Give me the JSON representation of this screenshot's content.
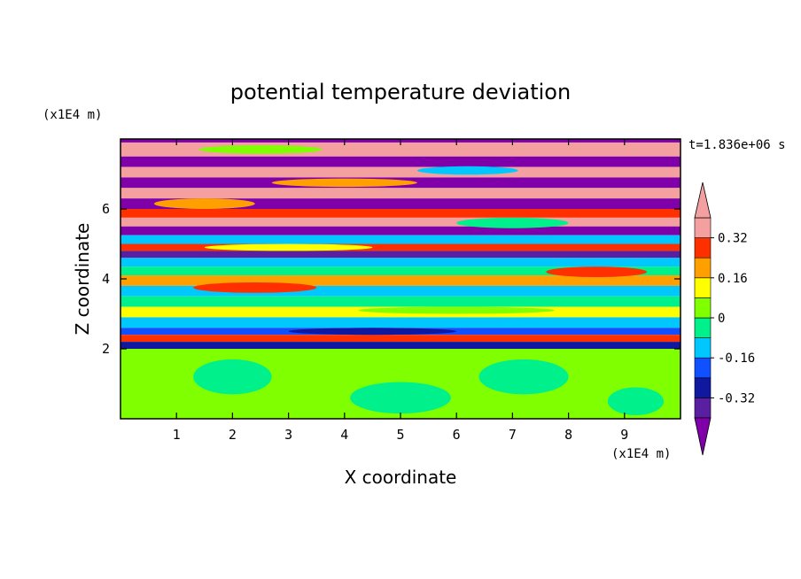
{
  "chart_data": {
    "type": "heatmap",
    "title": "potential temperature deviation",
    "xlabel": "X coordinate",
    "ylabel": "Z coordinate",
    "x_unit": "(x1E4 m)",
    "y_unit": "(x1E4 m)",
    "time_label": "t=1.836e+06 s",
    "xlim": [
      0,
      10
    ],
    "ylim": [
      0,
      8
    ],
    "x_ticks": [
      "1",
      "2",
      "3",
      "4",
      "5",
      "6",
      "7",
      "8",
      "9"
    ],
    "x_tick_values": [
      1,
      2,
      3,
      4,
      5,
      6,
      7,
      8,
      9
    ],
    "y_ticks": [
      "2",
      "4",
      "6"
    ],
    "y_tick_values": [
      2,
      4,
      6
    ],
    "colorbar": {
      "levels": [
        -0.4,
        -0.32,
        -0.24,
        -0.16,
        -0.08,
        0,
        0.08,
        0.16,
        0.24,
        0.32,
        0.4
      ],
      "tick_labels": [
        "0.32",
        "0.16",
        "0",
        "-0.16",
        "-0.32"
      ],
      "tick_values": [
        0.32,
        0.16,
        0,
        -0.16,
        -0.32
      ],
      "colors": [
        "#7f00a8",
        "#5a1ea0",
        "#1018a0",
        "#1050ff",
        "#00c8ff",
        "#00f08c",
        "#7fff00",
        "#ffff00",
        "#ffa000",
        "#ff3000",
        "#f5a0a0"
      ],
      "extend": "both"
    },
    "bands": [
      {
        "z0": 7.9,
        "z1": 8.0,
        "color": "#7f00a8"
      },
      {
        "z0": 7.5,
        "z1": 7.9,
        "color": "#f5a0a0"
      },
      {
        "z0": 7.2,
        "z1": 7.5,
        "color": "#7f00a8"
      },
      {
        "z0": 6.9,
        "z1": 7.2,
        "color": "#f5a0a0"
      },
      {
        "z0": 6.6,
        "z1": 6.9,
        "color": "#7f00a8"
      },
      {
        "z0": 6.3,
        "z1": 6.6,
        "color": "#f5a0a0"
      },
      {
        "z0": 6.0,
        "z1": 6.3,
        "color": "#7f00a8"
      },
      {
        "z0": 5.75,
        "z1": 6.0,
        "color": "#ff3000"
      },
      {
        "z0": 5.5,
        "z1": 5.75,
        "color": "#f5a0a0"
      },
      {
        "z0": 5.25,
        "z1": 5.5,
        "color": "#7f00a8"
      },
      {
        "z0": 5.0,
        "z1": 5.25,
        "color": "#00c8ff"
      },
      {
        "z0": 4.8,
        "z1": 5.0,
        "color": "#ff3000"
      },
      {
        "z0": 4.6,
        "z1": 4.8,
        "color": "#5a1ea0"
      },
      {
        "z0": 4.35,
        "z1": 4.6,
        "color": "#00c8ff"
      },
      {
        "z0": 4.1,
        "z1": 4.35,
        "color": "#00f08c"
      },
      {
        "z0": 3.8,
        "z1": 4.1,
        "color": "#ffa000"
      },
      {
        "z0": 3.5,
        "z1": 3.8,
        "color": "#00c8ff"
      },
      {
        "z0": 3.2,
        "z1": 3.5,
        "color": "#00f08c"
      },
      {
        "z0": 2.9,
        "z1": 3.2,
        "color": "#ffff00"
      },
      {
        "z0": 2.6,
        "z1": 2.9,
        "color": "#00c8ff"
      },
      {
        "z0": 2.4,
        "z1": 2.6,
        "color": "#1050ff"
      },
      {
        "z0": 2.2,
        "z1": 2.4,
        "color": "#ff3000"
      },
      {
        "z0": 2.0,
        "z1": 2.2,
        "color": "#1018a0"
      },
      {
        "z0": 0.0,
        "z1": 2.0,
        "color": "#7fff00"
      }
    ],
    "blobs": [
      {
        "x": 2.5,
        "z": 7.7,
        "w": 2.2,
        "h": 0.12,
        "color": "#7fff00"
      },
      {
        "x": 6.2,
        "z": 7.1,
        "w": 1.8,
        "h": 0.12,
        "color": "#00c8ff"
      },
      {
        "x": 4.0,
        "z": 6.75,
        "w": 2.6,
        "h": 0.12,
        "color": "#ffa000"
      },
      {
        "x": 1.5,
        "z": 6.15,
        "w": 1.8,
        "h": 0.15,
        "color": "#ffa000"
      },
      {
        "x": 7.0,
        "z": 5.6,
        "w": 2.0,
        "h": 0.15,
        "color": "#00f08c"
      },
      {
        "x": 3.0,
        "z": 4.9,
        "w": 3.0,
        "h": 0.1,
        "color": "#ffff00"
      },
      {
        "x": 8.5,
        "z": 4.2,
        "w": 1.8,
        "h": 0.15,
        "color": "#ff3000"
      },
      {
        "x": 2.4,
        "z": 3.75,
        "w": 2.2,
        "h": 0.15,
        "color": "#ff3000"
      },
      {
        "x": 6.0,
        "z": 3.1,
        "w": 3.5,
        "h": 0.1,
        "color": "#7fff00"
      },
      {
        "x": 4.5,
        "z": 2.5,
        "w": 3.0,
        "h": 0.1,
        "color": "#1018a0"
      },
      {
        "x": 2.0,
        "z": 1.2,
        "w": 1.4,
        "h": 0.5,
        "color": "#00f08c"
      },
      {
        "x": 5.0,
        "z": 0.6,
        "w": 1.8,
        "h": 0.45,
        "color": "#00f08c"
      },
      {
        "x": 7.2,
        "z": 1.2,
        "w": 1.6,
        "h": 0.5,
        "color": "#00f08c"
      },
      {
        "x": 9.2,
        "z": 0.5,
        "w": 1.0,
        "h": 0.4,
        "color": "#00f08c"
      }
    ]
  }
}
